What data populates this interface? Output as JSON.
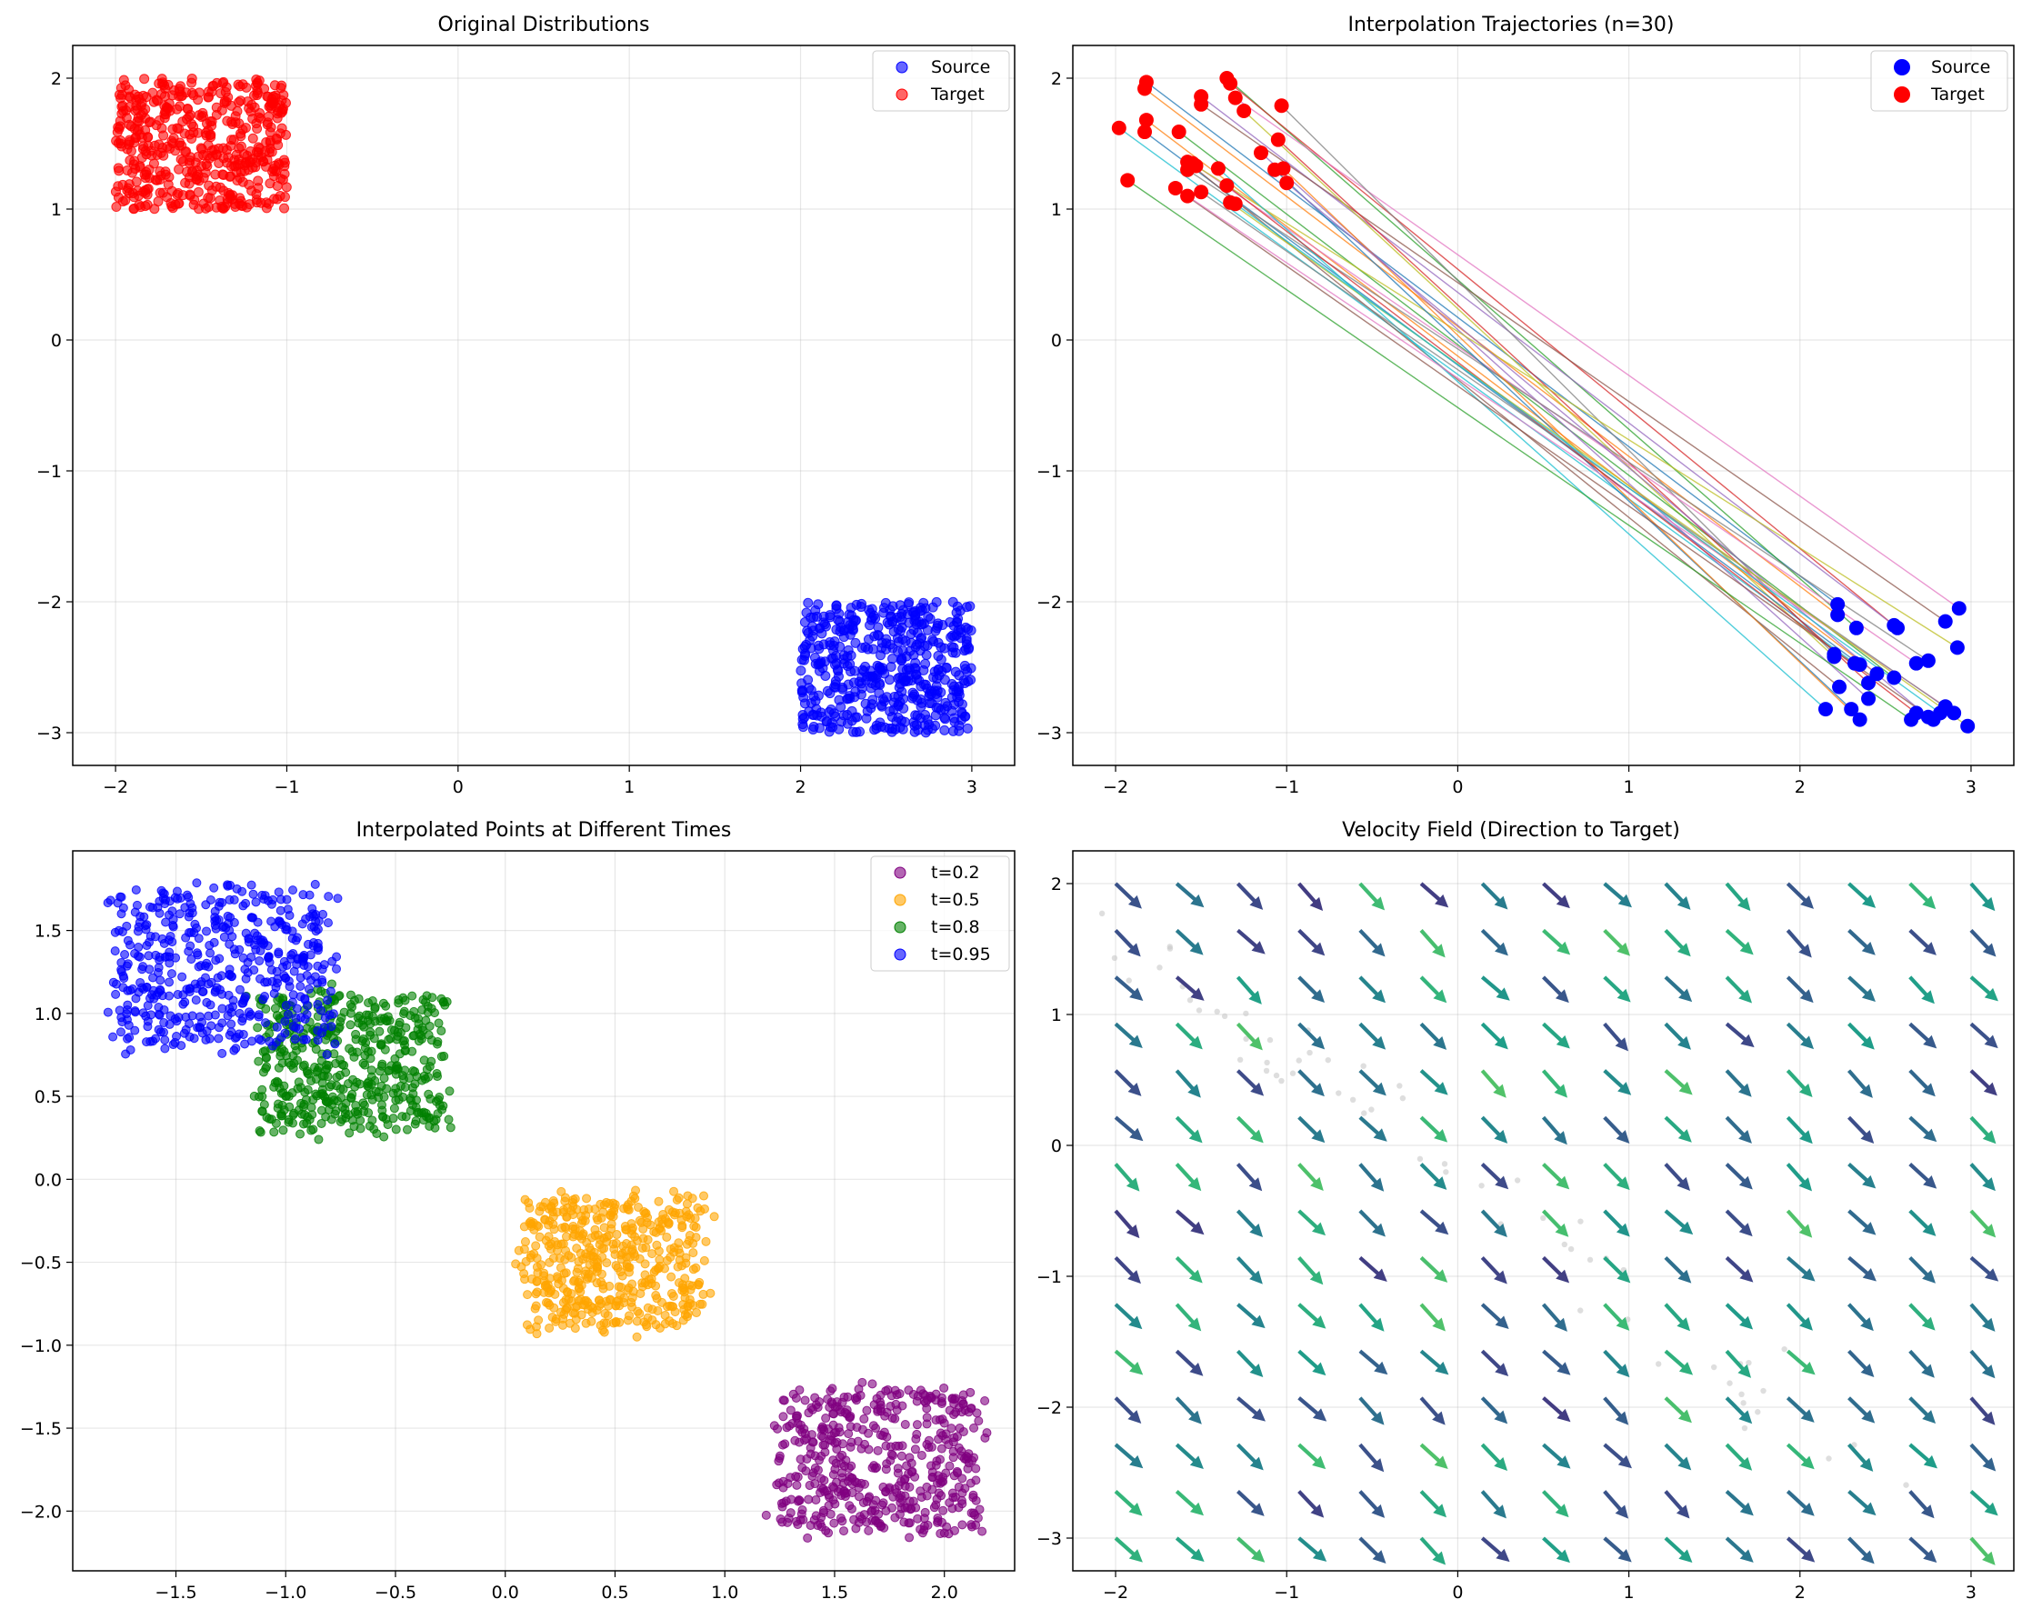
{
  "chart_data": [
    {
      "type": "scatter",
      "title": "Original Distributions",
      "xlim": [
        -2.25,
        3.25
      ],
      "ylim": [
        -3.25,
        2.25
      ],
      "xticks": [
        -2,
        -1,
        0,
        1,
        2,
        3
      ],
      "yticks": [
        -3,
        -2,
        -1,
        0,
        1,
        2
      ],
      "xtick_labels": [
        "−2",
        "−1",
        "0",
        "1",
        "2",
        "3"
      ],
      "ytick_labels": [
        "−3",
        "−2",
        "−1",
        "0",
        "1",
        "2"
      ],
      "grid": true,
      "legend": {
        "position": "top-right",
        "entries": [
          "Source",
          "Target"
        ]
      },
      "series": [
        {
          "name": "Source",
          "color": "#0000ff",
          "alpha": 0.6,
          "distribution": "uniform",
          "x_range": [
            2.0,
            3.0
          ],
          "y_range": [
            -3.0,
            -2.0
          ],
          "n": 500
        },
        {
          "name": "Target",
          "color": "#ff0000",
          "alpha": 0.6,
          "distribution": "uniform",
          "x_range": [
            -2.0,
            -1.0
          ],
          "y_range": [
            1.0,
            2.0
          ],
          "n": 500
        }
      ]
    },
    {
      "type": "line",
      "title": "Interpolation Trajectories (n=30)",
      "xlim": [
        -2.25,
        3.25
      ],
      "ylim": [
        -3.25,
        2.25
      ],
      "xticks": [
        -2,
        -1,
        0,
        1,
        2,
        3
      ],
      "yticks": [
        -3,
        -2,
        -1,
        0,
        1,
        2
      ],
      "xtick_labels": [
        "−2",
        "−1",
        "0",
        "1",
        "2",
        "3"
      ],
      "ytick_labels": [
        "−3",
        "−2",
        "−1",
        "0",
        "1",
        "2"
      ],
      "grid": true,
      "legend": {
        "position": "top-right",
        "entries": [
          "Source",
          "Target"
        ]
      },
      "colors": {
        "source": "#0000ff",
        "target": "#ff0000"
      },
      "source_points": [
        [
          2.22,
          -2.02
        ],
        [
          2.22,
          -2.1
        ],
        [
          2.33,
          -2.2
        ],
        [
          2.55,
          -2.18
        ],
        [
          2.57,
          -2.2
        ],
        [
          2.85,
          -2.15
        ],
        [
          2.93,
          -2.05
        ],
        [
          2.2,
          -2.4
        ],
        [
          2.2,
          -2.42
        ],
        [
          2.32,
          -2.47
        ],
        [
          2.35,
          -2.48
        ],
        [
          2.45,
          -2.55
        ],
        [
          2.55,
          -2.58
        ],
        [
          2.4,
          -2.62
        ],
        [
          2.4,
          -2.74
        ],
        [
          2.23,
          -2.65
        ],
        [
          2.68,
          -2.47
        ],
        [
          2.75,
          -2.45
        ],
        [
          2.92,
          -2.35
        ],
        [
          2.15,
          -2.82
        ],
        [
          2.3,
          -2.82
        ],
        [
          2.35,
          -2.9
        ],
        [
          2.65,
          -2.9
        ],
        [
          2.68,
          -2.85
        ],
        [
          2.75,
          -2.88
        ],
        [
          2.78,
          -2.9
        ],
        [
          2.85,
          -2.8
        ],
        [
          2.9,
          -2.85
        ],
        [
          2.98,
          -2.95
        ],
        [
          2.82,
          -2.85
        ]
      ],
      "target_points": [
        [
          -1.82,
          1.97
        ],
        [
          -1.83,
          1.92
        ],
        [
          -1.35,
          2.0
        ],
        [
          -1.33,
          1.96
        ],
        [
          -1.5,
          1.86
        ],
        [
          -1.5,
          1.8
        ],
        [
          -1.3,
          1.85
        ],
        [
          -1.03,
          1.79
        ],
        [
          -1.25,
          1.75
        ],
        [
          -1.98,
          1.62
        ],
        [
          -1.83,
          1.59
        ],
        [
          -1.82,
          1.68
        ],
        [
          -1.63,
          1.59
        ],
        [
          -1.05,
          1.53
        ],
        [
          -1.15,
          1.43
        ],
        [
          -1.58,
          1.36
        ],
        [
          -1.55,
          1.35
        ],
        [
          -1.58,
          1.3
        ],
        [
          -1.53,
          1.33
        ],
        [
          -1.4,
          1.31
        ],
        [
          -1.07,
          1.3
        ],
        [
          -1.02,
          1.31
        ],
        [
          -1.93,
          1.22
        ],
        [
          -1.35,
          1.18
        ],
        [
          -1.0,
          1.2
        ],
        [
          -1.65,
          1.16
        ],
        [
          -1.58,
          1.1
        ],
        [
          -1.5,
          1.13
        ],
        [
          -1.33,
          1.05
        ],
        [
          -1.3,
          1.04
        ]
      ]
    },
    {
      "type": "scatter",
      "title": "Interpolated Points at Different Times",
      "xlim": [
        -1.97,
        2.32
      ],
      "ylim": [
        -2.36,
        1.98
      ],
      "xticks": [
        -1.5,
        -1.0,
        -0.5,
        0.0,
        0.5,
        1.0,
        1.5,
        2.0
      ],
      "yticks": [
        -2.0,
        -1.5,
        -1.0,
        -0.5,
        0.0,
        0.5,
        1.0,
        1.5
      ],
      "xtick_labels": [
        "−1.5",
        "−1.0",
        "−0.5",
        "0.0",
        "0.5",
        "1.0",
        "1.5",
        "2.0"
      ],
      "ytick_labels": [
        "−2.0",
        "−1.5",
        "−1.0",
        "−0.5",
        "0.0",
        "0.5",
        "1.0",
        "1.5"
      ],
      "grid": true,
      "legend": {
        "position": "top-right",
        "entries": [
          "t=0.2",
          "t=0.5",
          "t=0.8",
          "t=0.95"
        ]
      },
      "series": [
        {
          "name": "t=0.2",
          "color": "#800080",
          "alpha": 0.6,
          "center": [
            1.7,
            -1.7
          ],
          "half_width": [
            0.45,
            0.43
          ],
          "n": 500
        },
        {
          "name": "t=0.5",
          "color": "#ffa500",
          "alpha": 0.6,
          "center": [
            0.5,
            -0.5
          ],
          "half_width": [
            0.4,
            0.4
          ],
          "n": 500
        },
        {
          "name": "t=0.8",
          "color": "#008000",
          "alpha": 0.6,
          "center": [
            -0.7,
            0.7
          ],
          "half_width": [
            0.42,
            0.42
          ],
          "n": 500
        },
        {
          "name": "t=0.95",
          "color": "#0000ff",
          "alpha": 0.6,
          "center": [
            -1.28,
            1.28
          ],
          "half_width": [
            0.5,
            0.48
          ],
          "n": 500
        }
      ]
    },
    {
      "type": "quiver",
      "title": "Velocity Field (Direction to Target)",
      "xlim": [
        -2.25,
        3.25
      ],
      "ylim": [
        -3.25,
        2.25
      ],
      "xticks": [
        -2,
        -1,
        0,
        1,
        2,
        3
      ],
      "yticks": [
        -3,
        -2,
        -1,
        0,
        1,
        2
      ],
      "xtick_labels": [
        "−2",
        "−1",
        "0",
        "1",
        "2",
        "3"
      ],
      "ytick_labels": [
        "−3",
        "−2",
        "−1",
        "0",
        "1",
        "2"
      ],
      "grid": true,
      "colormap": "viridis",
      "grid_x": {
        "start": -2,
        "stop": 3,
        "n": 15
      },
      "grid_y": {
        "start": -3,
        "stop": 2,
        "n": 15
      },
      "vector_direction": [
        -0.71,
        0.7
      ],
      "background_points_color": "#c8c8c8"
    }
  ]
}
